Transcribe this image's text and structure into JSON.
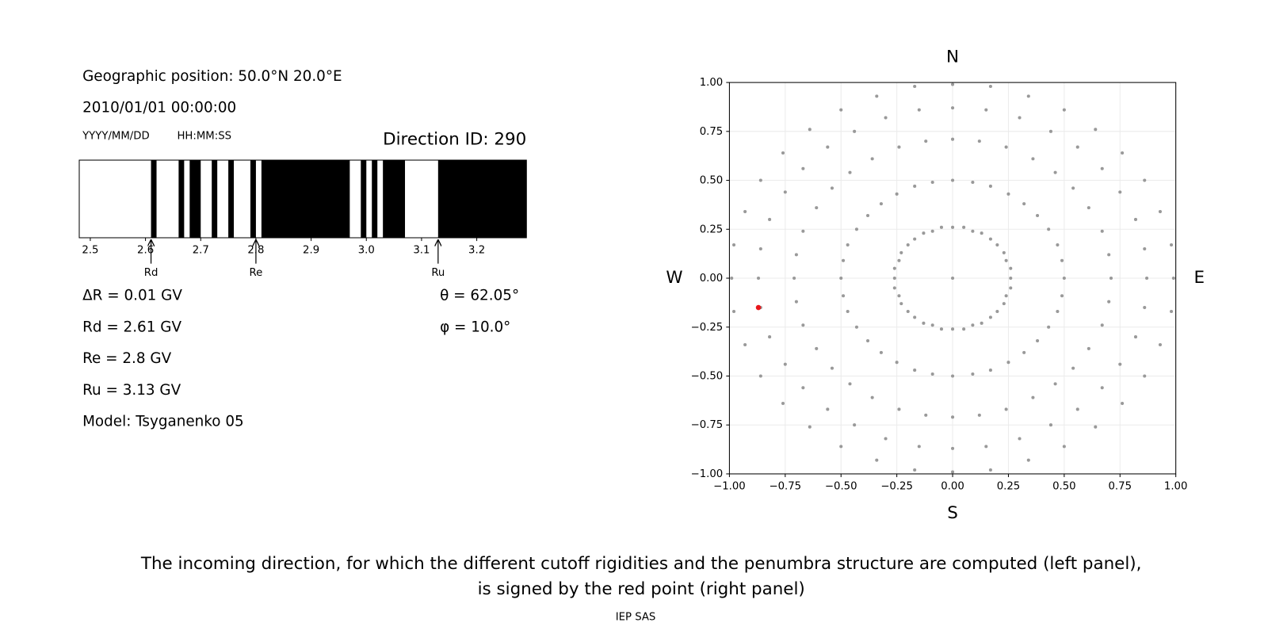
{
  "info": {
    "position": "Geographic position: 50.0°N 20.0°E",
    "datetime": "2010/01/01 00:00:00",
    "date_format": "YYYY/MM/DD",
    "time_format": "HH:MM:SS",
    "delta_r": "ΔR = 0.01 GV",
    "model": "Model: Tsyganenko 05",
    "theta": "θ = 62.05°",
    "phi": "φ = 10.0°"
  },
  "chart_data": [
    {
      "type": "penumbra",
      "title": "Direction ID: 290",
      "color": "#000000",
      "xlim": [
        2.48,
        3.29
      ],
      "xticks": [
        2.5,
        2.6,
        2.7,
        2.8,
        2.9,
        {
          "value": 3,
          "label": "3.0"
        },
        3.1,
        3.2
      ],
      "bands": [
        [
          2.61,
          2.62
        ],
        [
          2.66,
          2.67
        ],
        [
          2.68,
          2.7
        ],
        [
          2.72,
          2.73
        ],
        [
          2.75,
          2.76
        ],
        [
          2.79,
          2.8
        ],
        [
          2.81,
          2.97
        ],
        [
          2.99,
          3.0
        ],
        [
          3.01,
          3.02
        ],
        [
          3.03,
          3.07
        ],
        [
          3.13,
          3.29
        ]
      ],
      "annotations": [
        {
          "label": "Rd",
          "value": 2.61,
          "text": "Rd = 2.61 GV"
        },
        {
          "label": "Re",
          "value": 2.8,
          "text": "Re = 2.8 GV"
        },
        {
          "label": "Ru",
          "value": 3.13,
          "text": "Ru = 3.13 GV"
        }
      ]
    },
    {
      "type": "scatter",
      "grid": true,
      "xlim": [
        -1,
        1
      ],
      "ylim": [
        -1,
        1
      ],
      "xticks": [
        {
          "value": -1,
          "label": "−1.00"
        },
        {
          "value": -0.75,
          "label": "−0.75"
        },
        {
          "value": -0.5,
          "label": "−0.50"
        },
        {
          "value": -0.25,
          "label": "−0.25"
        },
        {
          "value": 0,
          "label": "0.00"
        },
        {
          "value": 0.25,
          "label": "0.25"
        },
        {
          "value": 0.5,
          "label": "0.50"
        },
        {
          "value": 0.75,
          "label": "0.75"
        },
        {
          "value": 1,
          "label": "1.00"
        }
      ],
      "yticks": [
        {
          "value": -1,
          "label": "−1.00"
        },
        {
          "value": -0.75,
          "label": "−0.75"
        },
        {
          "value": -0.5,
          "label": "−0.50"
        },
        {
          "value": -0.25,
          "label": "−0.25"
        },
        {
          "value": 0,
          "label": "0.00"
        },
        {
          "value": 0.25,
          "label": "0.25"
        },
        {
          "value": 0.5,
          "label": "0.50"
        },
        {
          "value": 0.75,
          "label": "0.75"
        },
        {
          "value": 1,
          "label": "1.00"
        }
      ],
      "directions": {
        "north": "N",
        "south": "S",
        "west": "W",
        "east": "E"
      },
      "series": [
        {
          "color": "#999999",
          "x": [
            0.26,
            0.26,
            0.24,
            0.23,
            0.2,
            0.17,
            0.13,
            0.09,
            0.05,
            0,
            -0.05,
            -0.09,
            -0.13,
            -0.17,
            -0.2,
            -0.23,
            -0.24,
            -0.26,
            -0.26,
            -0.26,
            -0.24,
            -0.23,
            -0.2,
            -0.17,
            -0.13,
            -0.09,
            -0.05,
            0,
            0.05,
            0.09,
            0.13,
            0.17,
            0.2,
            0.23,
            0.24,
            0.26,
            0.5,
            0.49,
            0.47,
            0.43,
            0.38,
            0.32,
            0.25,
            0.17,
            0.09,
            0,
            -0.09,
            -0.17,
            -0.25,
            -0.32,
            -0.38,
            -0.43,
            -0.47,
            -0.49,
            -0.5,
            -0.49,
            -0.47,
            -0.43,
            -0.38,
            -0.32,
            -0.25,
            -0.17,
            -0.09,
            0,
            0.09,
            0.17,
            0.25,
            0.32,
            0.38,
            0.43,
            0.47,
            0.49,
            0.71,
            0.7,
            0.67,
            0.61,
            0.54,
            0.46,
            0.36,
            0.24,
            0.12,
            0,
            -0.12,
            -0.24,
            -0.36,
            -0.46,
            -0.54,
            -0.61,
            -0.67,
            -0.7,
            -0.71,
            -0.7,
            -0.67,
            -0.61,
            -0.54,
            -0.46,
            -0.36,
            -0.24,
            -0.12,
            0,
            0.12,
            0.24,
            0.36,
            0.46,
            0.54,
            0.61,
            0.67,
            0.7,
            0.87,
            0.86,
            0.82,
            0.75,
            0.67,
            0.56,
            0.44,
            0.3,
            0.15,
            0,
            -0.15,
            -0.3,
            -0.44,
            -0.56,
            -0.67,
            -0.75,
            -0.82,
            -0.86,
            -0.87,
            -0.86,
            -0.82,
            -0.75,
            -0.67,
            -0.56,
            -0.44,
            -0.3,
            -0.15,
            0,
            0.15,
            0.3,
            0.44,
            0.56,
            0.67,
            0.75,
            0.82,
            0.86,
            0.99,
            0.98,
            0.93,
            0.86,
            0.76,
            0.64,
            0.5,
            0.34,
            0.17,
            0,
            -0.17,
            -0.34,
            -0.5,
            -0.64,
            -0.76,
            -0.86,
            -0.93,
            -0.98,
            -0.99,
            -0.98,
            -0.93,
            -0.86,
            -0.76,
            -0.64,
            -0.5,
            -0.34,
            -0.17,
            0,
            0.17,
            0.34,
            0.5,
            0.64,
            0.76,
            0.86,
            0.93,
            0.98,
            0
          ],
          "y": [
            0,
            0.05,
            0.09,
            0.13,
            0.17,
            0.2,
            0.23,
            0.24,
            0.26,
            0.26,
            0.26,
            0.24,
            0.23,
            0.2,
            0.17,
            0.13,
            0.09,
            0.05,
            0,
            -0.05,
            -0.09,
            -0.13,
            -0.17,
            -0.2,
            -0.23,
            -0.24,
            -0.26,
            -0.26,
            -0.26,
            -0.24,
            -0.23,
            -0.2,
            -0.17,
            -0.13,
            -0.09,
            -0.05,
            0,
            0.09,
            0.17,
            0.25,
            0.32,
            0.38,
            0.43,
            0.47,
            0.49,
            0.5,
            0.49,
            0.47,
            0.43,
            0.38,
            0.32,
            0.25,
            0.17,
            0.09,
            0,
            -0.09,
            -0.17,
            -0.25,
            -0.32,
            -0.38,
            -0.43,
            -0.47,
            -0.49,
            -0.5,
            -0.49,
            -0.47,
            -0.43,
            -0.38,
            -0.32,
            -0.25,
            -0.17,
            -0.09,
            0,
            0.12,
            0.24,
            0.36,
            0.46,
            0.54,
            0.61,
            0.67,
            0.7,
            0.71,
            0.7,
            0.67,
            0.61,
            0.54,
            0.46,
            0.36,
            0.24,
            0.12,
            0,
            -0.12,
            -0.24,
            -0.36,
            -0.46,
            -0.54,
            -0.61,
            -0.67,
            -0.7,
            -0.71,
            -0.7,
            -0.67,
            -0.61,
            -0.54,
            -0.46,
            -0.36,
            -0.24,
            -0.12,
            0,
            0.15,
            0.3,
            0.44,
            0.56,
            0.67,
            0.75,
            0.82,
            0.86,
            0.87,
            0.86,
            0.82,
            0.75,
            0.67,
            0.56,
            0.44,
            0.3,
            0.15,
            0,
            -0.15,
            -0.3,
            -0.44,
            -0.56,
            -0.67,
            -0.75,
            -0.82,
            -0.86,
            -0.87,
            -0.86,
            -0.82,
            -0.75,
            -0.67,
            -0.56,
            -0.44,
            -0.3,
            -0.15,
            0,
            0.17,
            0.34,
            0.5,
            0.64,
            0.76,
            0.86,
            0.93,
            0.98,
            0.99,
            0.98,
            0.93,
            0.86,
            0.76,
            0.64,
            0.5,
            0.34,
            0.17,
            0,
            -0.17,
            -0.34,
            -0.5,
            -0.64,
            -0.76,
            -0.86,
            -0.93,
            -0.98,
            -0.99,
            -0.98,
            -0.93,
            -0.86,
            -0.76,
            -0.64,
            -0.5,
            -0.34,
            -0.17,
            0
          ]
        },
        {
          "color": "#e8161b",
          "x": [
            -0.87
          ],
          "y": [
            -0.15
          ]
        }
      ]
    }
  ],
  "caption": [
    "The incoming direction, for which the different cutoff rigidities and the penumbra structure are computed (left panel),",
    "is signed by the red point (right panel)"
  ],
  "footer": "IEP SAS"
}
